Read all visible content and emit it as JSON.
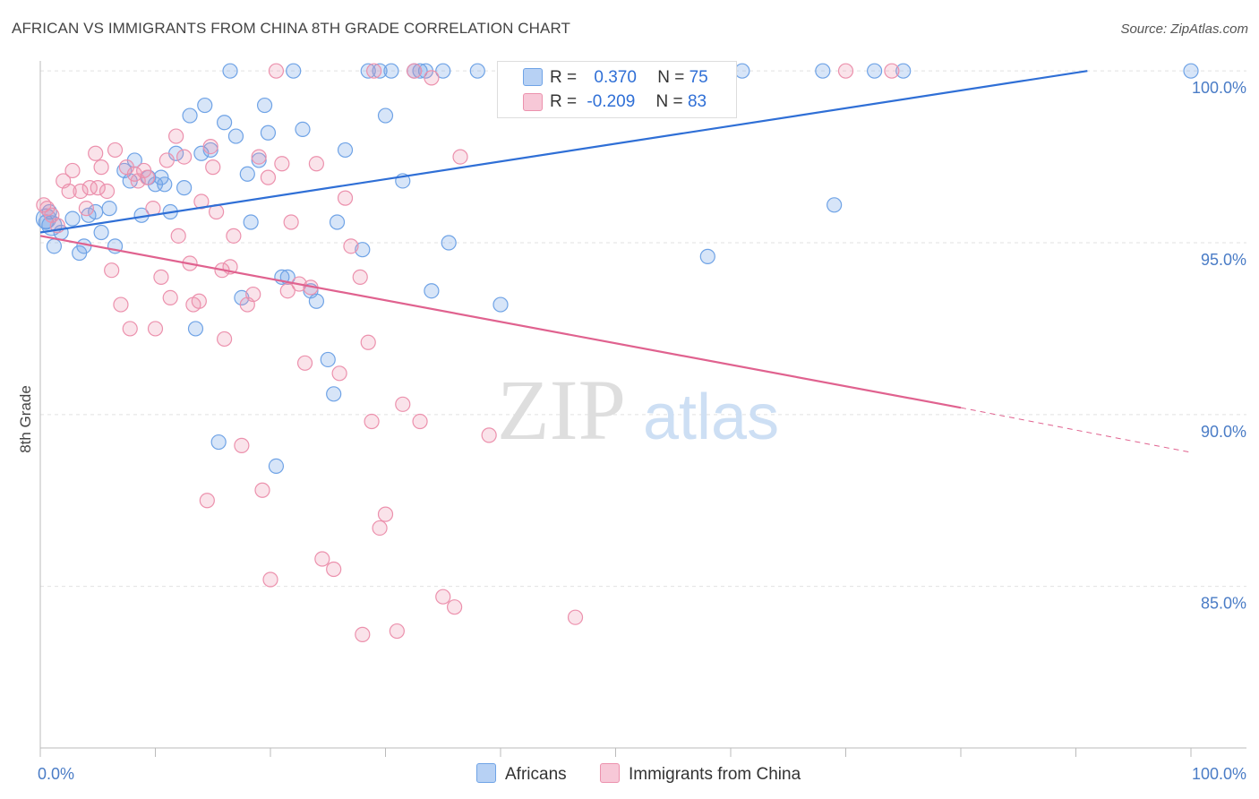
{
  "title": "AFRICAN VS IMMIGRANTS FROM CHINA 8TH GRADE CORRELATION CHART",
  "source": "Source: ZipAtlas.com",
  "watermark": {
    "zip": "ZIP",
    "atlas": "atlas"
  },
  "colors": {
    "blue": "#6fa3e6",
    "blue_line": "#2f6fd6",
    "pink": "#ec91ad",
    "pink_line": "#e0628f",
    "tick_text": "#4a7cc6"
  },
  "legend": {
    "rows": [
      {
        "r_label": "R =",
        "r_value": "0.370",
        "n_label": "N =",
        "n_value": "75"
      },
      {
        "r_label": "R =",
        "r_value": "-0.209",
        "n_label": "N =",
        "n_value": "83"
      }
    ]
  },
  "bottom_legend": {
    "africans": "Africans",
    "china": "Immigrants from China"
  },
  "chart_data": {
    "type": "scatter",
    "title": "AFRICAN VS IMMIGRANTS FROM CHINA 8TH GRADE CORRELATION CHART",
    "xlabel": "",
    "ylabel": "8th Grade",
    "xlim": [
      0,
      100
    ],
    "ylim": [
      80.3,
      100.5
    ],
    "x_tick_labels": [
      "0.0%",
      "100.0%"
    ],
    "y_ticks": [
      100,
      95,
      90,
      85
    ],
    "y_tick_labels": [
      "100.0%",
      "95.0%",
      "90.0%",
      "85.0%"
    ],
    "grid": "horizontal dashed",
    "legend_position": "top-center",
    "series": [
      {
        "name": "Africans",
        "color": "#6fa3e6",
        "trend": {
          "x": [
            0,
            91
          ],
          "y": [
            95.3,
            100.0
          ]
        },
        "points": [
          [
            0.5,
            95.6
          ],
          [
            0.8,
            95.9
          ],
          [
            1.2,
            94.9
          ],
          [
            1.8,
            95.3
          ],
          [
            2.8,
            95.7
          ],
          [
            3.4,
            94.7
          ],
          [
            3.8,
            94.9
          ],
          [
            4.2,
            95.8
          ],
          [
            4.8,
            95.9
          ],
          [
            5.3,
            95.3
          ],
          [
            6.0,
            96.0
          ],
          [
            6.5,
            94.9
          ],
          [
            7.3,
            97.1
          ],
          [
            7.8,
            96.8
          ],
          [
            8.2,
            97.4
          ],
          [
            8.8,
            95.8
          ],
          [
            9.4,
            96.9
          ],
          [
            10.0,
            96.7
          ],
          [
            10.5,
            96.9
          ],
          [
            10.8,
            96.7
          ],
          [
            11.3,
            95.9
          ],
          [
            11.8,
            97.6
          ],
          [
            12.5,
            96.6
          ],
          [
            13.0,
            98.7
          ],
          [
            13.5,
            92.5
          ],
          [
            14.0,
            97.6
          ],
          [
            14.3,
            99.0
          ],
          [
            14.8,
            97.7
          ],
          [
            15.5,
            89.2
          ],
          [
            16.0,
            98.5
          ],
          [
            16.5,
            100
          ],
          [
            17.0,
            98.1
          ],
          [
            17.5,
            93.4
          ],
          [
            18.0,
            97.0
          ],
          [
            18.3,
            95.6
          ],
          [
            19.0,
            97.4
          ],
          [
            19.5,
            99.0
          ],
          [
            19.8,
            98.2
          ],
          [
            20.5,
            88.5
          ],
          [
            21.0,
            94.0
          ],
          [
            21.5,
            94.0
          ],
          [
            22.0,
            100
          ],
          [
            22.8,
            98.3
          ],
          [
            23.5,
            93.6
          ],
          [
            24.0,
            93.3
          ],
          [
            25.0,
            91.6
          ],
          [
            25.5,
            90.6
          ],
          [
            25.8,
            95.6
          ],
          [
            26.5,
            97.7
          ],
          [
            28.0,
            94.8
          ],
          [
            28.5,
            100
          ],
          [
            29.5,
            100
          ],
          [
            30.0,
            98.7
          ],
          [
            30.5,
            100
          ],
          [
            31.5,
            96.8
          ],
          [
            32.5,
            100
          ],
          [
            33.0,
            100
          ],
          [
            33.5,
            100
          ],
          [
            34.0,
            93.6
          ],
          [
            35.0,
            100
          ],
          [
            35.5,
            95.0
          ],
          [
            38.0,
            100
          ],
          [
            40.0,
            93.2
          ],
          [
            42.0,
            100
          ],
          [
            45.5,
            99.1
          ],
          [
            47.0,
            100
          ],
          [
            58.0,
            94.6
          ],
          [
            61.0,
            100
          ],
          [
            68.0,
            100
          ],
          [
            69.0,
            96.1
          ],
          [
            72.5,
            100
          ],
          [
            75.0,
            100
          ],
          [
            100.0,
            100
          ],
          [
            0.5,
            95.7
          ],
          [
            1.0,
            95.5
          ]
        ]
      },
      {
        "name": "Immigrants from China",
        "color": "#ec91ad",
        "trend": {
          "x": [
            0,
            80
          ],
          "y": [
            95.2,
            90.2
          ]
        },
        "trend_dashed": {
          "x": [
            80,
            100
          ],
          "y": [
            90.2,
            88.9
          ]
        },
        "points": [
          [
            0.3,
            96.1
          ],
          [
            0.6,
            96.0
          ],
          [
            1.0,
            95.8
          ],
          [
            1.5,
            95.5
          ],
          [
            2.0,
            96.8
          ],
          [
            2.5,
            96.5
          ],
          [
            2.8,
            97.1
          ],
          [
            3.5,
            96.5
          ],
          [
            4.0,
            96.0
          ],
          [
            4.3,
            96.6
          ],
          [
            4.8,
            97.6
          ],
          [
            5.0,
            96.6
          ],
          [
            5.3,
            97.2
          ],
          [
            5.8,
            96.5
          ],
          [
            6.2,
            94.2
          ],
          [
            6.5,
            97.7
          ],
          [
            7.0,
            93.2
          ],
          [
            7.5,
            97.2
          ],
          [
            7.8,
            92.5
          ],
          [
            8.2,
            97.0
          ],
          [
            8.5,
            96.8
          ],
          [
            9.0,
            97.1
          ],
          [
            9.3,
            96.9
          ],
          [
            9.8,
            96.0
          ],
          [
            10.0,
            92.5
          ],
          [
            10.5,
            94.0
          ],
          [
            11.0,
            97.4
          ],
          [
            11.3,
            93.4
          ],
          [
            11.8,
            98.1
          ],
          [
            12.0,
            95.2
          ],
          [
            12.5,
            97.5
          ],
          [
            13.0,
            94.4
          ],
          [
            13.3,
            93.2
          ],
          [
            13.8,
            93.3
          ],
          [
            14.0,
            96.2
          ],
          [
            14.5,
            87.5
          ],
          [
            14.8,
            97.8
          ],
          [
            15.0,
            97.2
          ],
          [
            15.3,
            95.9
          ],
          [
            15.8,
            94.2
          ],
          [
            16.0,
            92.2
          ],
          [
            16.5,
            94.3
          ],
          [
            16.8,
            95.2
          ],
          [
            17.5,
            89.1
          ],
          [
            18.0,
            93.2
          ],
          [
            18.5,
            93.5
          ],
          [
            19.0,
            97.5
          ],
          [
            19.3,
            87.8
          ],
          [
            19.8,
            96.9
          ],
          [
            20.0,
            85.2
          ],
          [
            20.5,
            100
          ],
          [
            21.0,
            97.3
          ],
          [
            21.5,
            93.6
          ],
          [
            21.8,
            95.6
          ],
          [
            22.5,
            93.8
          ],
          [
            23.0,
            91.5
          ],
          [
            23.5,
            93.7
          ],
          [
            24.0,
            97.3
          ],
          [
            24.5,
            85.8
          ],
          [
            25.5,
            85.5
          ],
          [
            26.0,
            91.2
          ],
          [
            26.5,
            96.3
          ],
          [
            27.0,
            94.9
          ],
          [
            27.8,
            94.0
          ],
          [
            28.0,
            83.6
          ],
          [
            28.5,
            92.1
          ],
          [
            28.8,
            89.8
          ],
          [
            29.0,
            100
          ],
          [
            29.5,
            86.7
          ],
          [
            30.0,
            87.1
          ],
          [
            31.0,
            83.7
          ],
          [
            31.5,
            90.3
          ],
          [
            32.5,
            100
          ],
          [
            33.0,
            89.8
          ],
          [
            34.0,
            99.8
          ],
          [
            35.0,
            84.7
          ],
          [
            36.0,
            84.4
          ],
          [
            36.5,
            97.5
          ],
          [
            39.0,
            89.4
          ],
          [
            41.0,
            100
          ],
          [
            46.5,
            84.1
          ],
          [
            70.0,
            100
          ],
          [
            74.0,
            100
          ]
        ]
      }
    ]
  }
}
